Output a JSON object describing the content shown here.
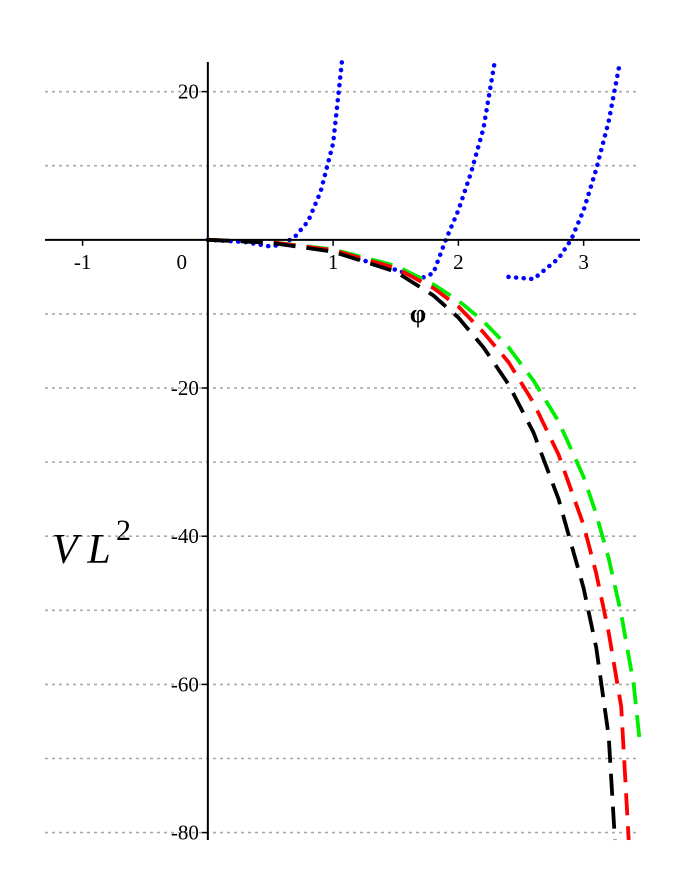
{
  "chart_data": {
    "type": "line",
    "title": "",
    "xlabel": "φ",
    "ylabel": "V L",
    "ylabel_superscript": "2",
    "xlim": [
      -1.3,
      3.45
    ],
    "ylim": [
      -81,
      24
    ],
    "x_ticks": [
      -1,
      1,
      2,
      3
    ],
    "x_tick_labels": [
      "-1",
      "1",
      "2",
      "3"
    ],
    "origin_label": "0",
    "y_ticks": [
      20,
      -20,
      -40,
      -60,
      -80
    ],
    "y_tick_labels": [
      "20",
      "-20",
      "-40",
      "-60",
      "-80"
    ],
    "grid": "horizontal dotted",
    "legend": "none",
    "series": [
      {
        "color": "#0000ff",
        "style": "dotted",
        "x": [
          0.0,
          0.3,
          0.5,
          0.6,
          0.7,
          0.8,
          0.9,
          1.0,
          1.07,
          1.2,
          1.4,
          1.6,
          1.7,
          1.8,
          1.9,
          2.0,
          2.1,
          2.2,
          2.29,
          2.4,
          2.6,
          2.8,
          2.9,
          3.0,
          3.1,
          3.2,
          3.29
        ],
        "y": [
          0.0,
          -0.3,
          -0.9,
          -0.6,
          0.5,
          2.5,
          6.5,
          13.0,
          24.0,
          -2.6,
          -3.5,
          -4.6,
          -5.2,
          -4.5,
          0.0,
          4.0,
          9.0,
          15.0,
          24.0,
          -5.0,
          -5.3,
          -2.5,
          0.0,
          4.0,
          9.5,
          16.0,
          24.0
        ]
      },
      {
        "color": "#00ee00",
        "style": "dashed",
        "x": [
          0.0,
          0.5,
          1.0,
          1.5,
          1.8,
          2.0,
          2.2,
          2.4,
          2.6,
          2.8,
          3.0,
          3.1,
          3.2,
          3.3,
          3.4,
          3.45
        ],
        "y": [
          0.0,
          -0.3,
          -1.3,
          -3.5,
          -6.0,
          -8.2,
          -11.0,
          -14.5,
          -19.0,
          -24.5,
          -32.0,
          -37.0,
          -43.0,
          -50.5,
          -60.0,
          -68.0
        ]
      },
      {
        "color": "#ff0000",
        "style": "dashed",
        "x": [
          0.0,
          0.5,
          1.0,
          1.5,
          1.8,
          2.0,
          2.2,
          2.4,
          2.6,
          2.8,
          3.0,
          3.1,
          3.2,
          3.3,
          3.36
        ],
        "y": [
          0.0,
          -0.3,
          -1.4,
          -3.8,
          -6.5,
          -9.0,
          -12.5,
          -16.5,
          -22.0,
          -29.0,
          -38.5,
          -45.0,
          -53.0,
          -63.0,
          -81.0
        ]
      },
      {
        "color": "#000000",
        "style": "dashed",
        "x": [
          0.0,
          0.5,
          1.0,
          1.5,
          1.8,
          2.0,
          2.2,
          2.4,
          2.6,
          2.8,
          3.0,
          3.1,
          3.2,
          3.25
        ],
        "y": [
          0.0,
          -0.4,
          -1.6,
          -4.3,
          -7.5,
          -10.5,
          -14.5,
          -19.5,
          -26.0,
          -35.0,
          -47.0,
          -55.0,
          -67.0,
          -81.0
        ]
      }
    ]
  }
}
